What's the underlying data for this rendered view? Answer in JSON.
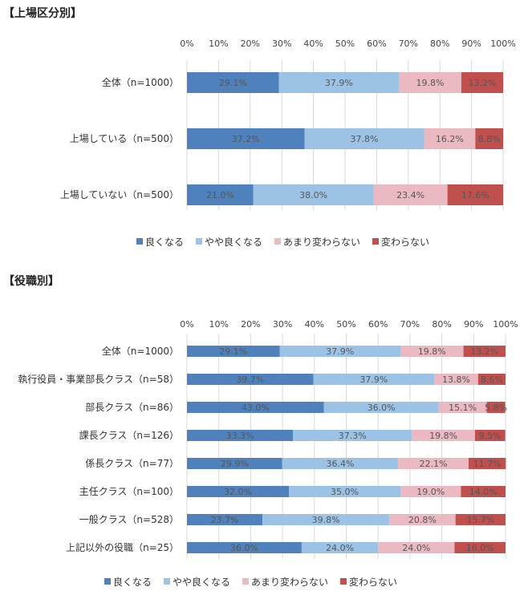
{
  "colors": {
    "良くなる": "#4f81bd",
    "やや良くなる": "#9cc3e5",
    "あまり変わらない": "#eab9c1",
    "変わらない": "#c0504d"
  },
  "chart_data": [
    {
      "type": "bar",
      "orientation": "horizontal",
      "stacked": "percent",
      "title": "【上場区分別】",
      "xlim": [
        0,
        100
      ],
      "ticks": [
        "0%",
        "10%",
        "20%",
        "30%",
        "40%",
        "50%",
        "60%",
        "70%",
        "80%",
        "90%",
        "100%"
      ],
      "categories": [
        "全体（n=1000）",
        "上場している（n=500）",
        "上場していない（n=500）"
      ],
      "series": [
        {
          "name": "良くなる",
          "values": [
            29.1,
            37.2,
            21.0
          ],
          "labels": [
            "29.1%",
            "37.2%",
            "21.0%"
          ]
        },
        {
          "name": "やや良くなる",
          "values": [
            37.9,
            37.8,
            38.0
          ],
          "labels": [
            "37.9%",
            "37.8%",
            "38.0%"
          ]
        },
        {
          "name": "あまり変わらない",
          "values": [
            19.8,
            16.2,
            23.4
          ],
          "labels": [
            "19.8%",
            "16.2%",
            "23.4%"
          ]
        },
        {
          "name": "変わらない",
          "values": [
            13.2,
            8.8,
            17.6
          ],
          "labels": [
            "13.2%",
            "8.8%",
            "17.6%"
          ]
        }
      ],
      "legend": "bottom"
    },
    {
      "type": "bar",
      "orientation": "horizontal",
      "stacked": "percent",
      "title": "【役職別】",
      "xlim": [
        0,
        100
      ],
      "ticks": [
        "0%",
        "10%",
        "20%",
        "30%",
        "40%",
        "50%",
        "60%",
        "70%",
        "80%",
        "90%",
        "100%"
      ],
      "categories": [
        "全体（n=1000）",
        "執行役員・事業部長クラス（n=58）",
        "部長クラス（n=86）",
        "課長クラス（n=126）",
        "係長クラス（n=77）",
        "主任クラス（n=100）",
        "一般クラス（n=528）",
        "上記以外の役職（n=25）"
      ],
      "series": [
        {
          "name": "良くなる",
          "values": [
            29.1,
            39.7,
            43.0,
            33.3,
            29.9,
            32.0,
            23.7,
            36.0
          ],
          "labels": [
            "29.1%",
            "39.7%",
            "43.0%",
            "33.3%",
            "29.9%",
            "32.0%",
            "23.7%",
            "36.0%"
          ]
        },
        {
          "name": "やや良くなる",
          "values": [
            37.9,
            37.9,
            36.0,
            37.3,
            36.4,
            35.0,
            39.8,
            24.0
          ],
          "labels": [
            "37.9%",
            "37.9%",
            "36.0%",
            "37.3%",
            "36.4%",
            "35.0%",
            "39.8%",
            "24.0%"
          ]
        },
        {
          "name": "あまり変わらない",
          "values": [
            19.8,
            13.8,
            15.1,
            19.8,
            22.1,
            19.0,
            20.8,
            24.0
          ],
          "labels": [
            "19.8%",
            "13.8%",
            "15.1%",
            "19.8%",
            "22.1%",
            "19.0%",
            "20.8%",
            "24.0%"
          ]
        },
        {
          "name": "変わらない",
          "values": [
            13.2,
            8.6,
            5.8,
            9.5,
            11.7,
            14.0,
            15.7,
            16.0
          ],
          "labels": [
            "13.2%",
            "8.6%",
            "5.8%",
            "9.5%",
            "11.7%",
            "14.0%",
            "15.7%",
            "16.0%"
          ]
        }
      ],
      "legend": "bottom"
    }
  ]
}
